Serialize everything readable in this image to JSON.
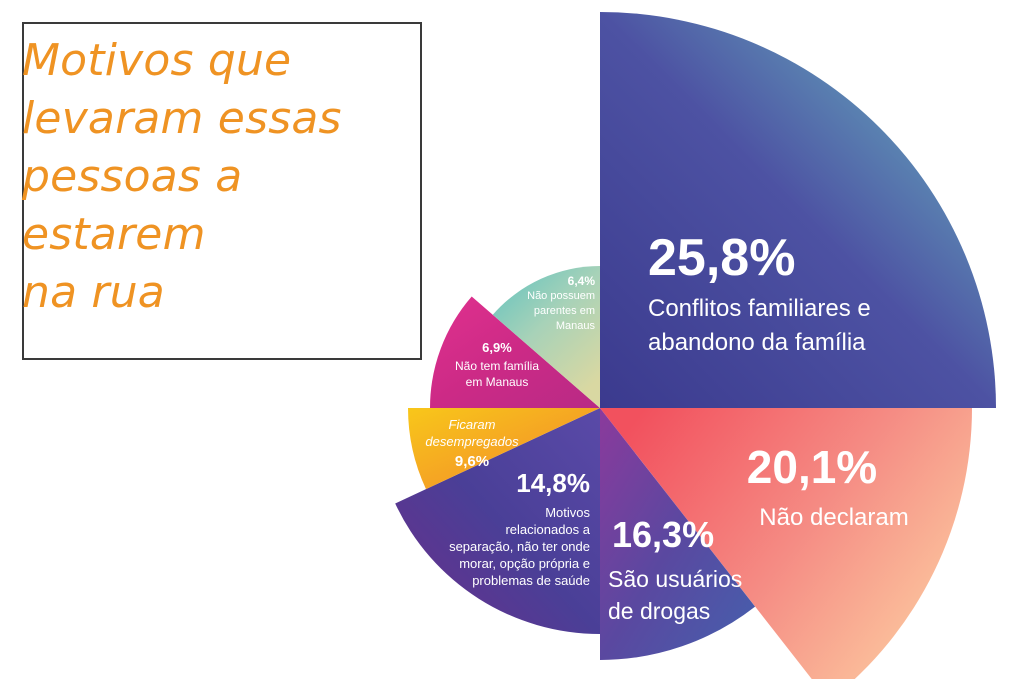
{
  "title": {
    "lines": [
      "Motivos que",
      "levaram essas",
      "pessoas a",
      "estarem",
      "na rua"
    ]
  },
  "colors": {
    "title": "#ef9323",
    "box_border": "#3a3a3a",
    "label": "#ffffff"
  },
  "chart_data": {
    "type": "pie",
    "title": "Motivos que levaram essas pessoas a estarem na rua",
    "unit": "%",
    "slices": [
      {
        "id": "conflitos",
        "label_lines": [
          "Conflitos familiares e",
          "abandono da família"
        ],
        "value": 25.8,
        "value_text": "25,8%",
        "colors": [
          "#6cc4c4",
          "#4d52a3",
          "#3b3a8e"
        ]
      },
      {
        "id": "nao-declaram",
        "label_lines": [
          "Não declaram"
        ],
        "value": 20.1,
        "value_text": "20,1%",
        "colors": [
          "#f2515e",
          "#f58c84",
          "#fdd1a3"
        ]
      },
      {
        "id": "drogas",
        "label_lines": [
          "São usuários",
          "de drogas"
        ],
        "value": 16.3,
        "value_text": "16,3%",
        "colors": [
          "#8b3a9c",
          "#5a48a0",
          "#4560ad"
        ]
      },
      {
        "id": "outros",
        "label_lines": [
          "Motivos",
          "relacionados a",
          "separação, não ter onde",
          "morar, opção própria e",
          "problemas de saúde"
        ],
        "value": 14.8,
        "value_text": "14,8%",
        "colors": [
          "#5a4aa8",
          "#4a3f97",
          "#6a2e8a"
        ]
      },
      {
        "id": "desempregados",
        "label_lines": [
          "Ficaram",
          "desempregados"
        ],
        "value": 9.6,
        "value_text": "9,6%",
        "colors": [
          "#f8c71a",
          "#f5a623",
          "#f08f2a"
        ]
      },
      {
        "id": "sem-familia",
        "label_lines": [
          "Não tem família",
          "em Manaus"
        ],
        "value": 6.9,
        "value_text": "6,9%",
        "colors": [
          "#e0318e",
          "#cc2a86",
          "#b82a85"
        ]
      },
      {
        "id": "sem-parentes",
        "label_lines": [
          "Não possuem",
          "parentes em",
          "Manaus"
        ],
        "value": 6.4,
        "value_text": "6,4%",
        "colors": [
          "#5ec2c0",
          "#a8d2b8",
          "#d9d8a2"
        ]
      }
    ]
  }
}
